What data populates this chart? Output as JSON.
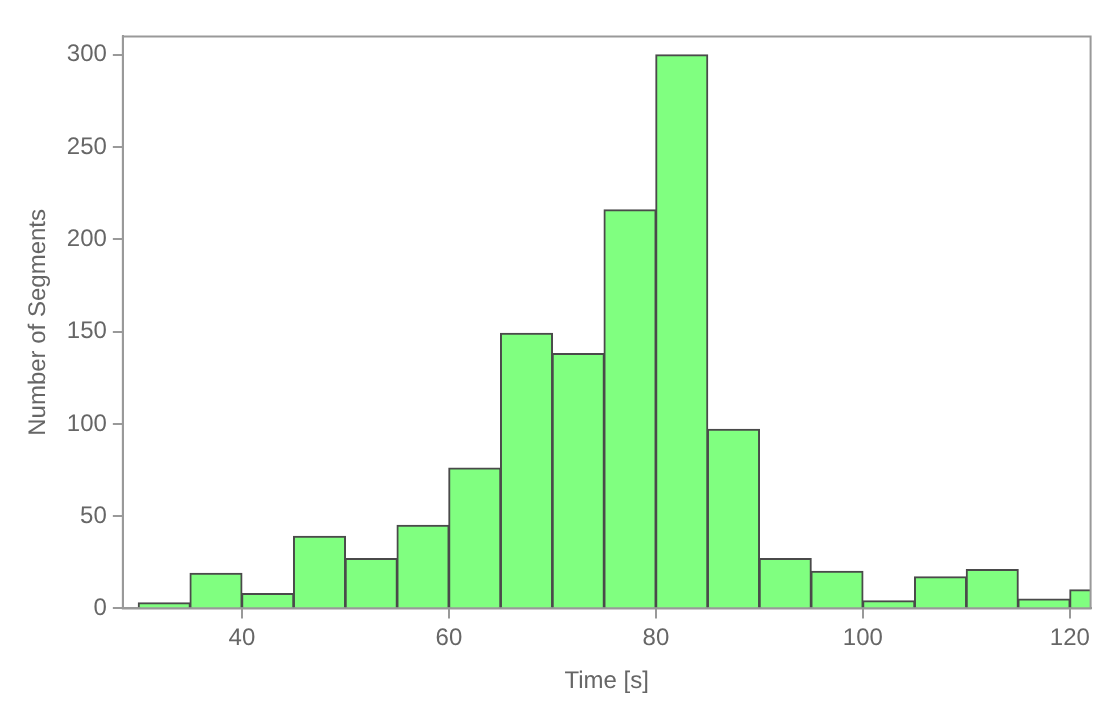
{
  "chart_data": {
    "type": "histogram",
    "xlabel": "Time [s]",
    "ylabel": "Number of Segments",
    "color": "#80ff80",
    "bins": [
      30,
      35,
      40,
      45,
      50,
      55,
      60,
      65,
      70,
      75,
      80,
      85,
      90,
      95,
      100,
      105,
      110,
      115,
      120,
      125
    ],
    "values": [
      3,
      19,
      8,
      39,
      27,
      45,
      76,
      149,
      138,
      216,
      300,
      97,
      27,
      20,
      4,
      17,
      21,
      5,
      10
    ],
    "xlim": [
      28.5,
      122
    ],
    "xticks": [
      40,
      60,
      80,
      100,
      120
    ],
    "ylim": [
      0,
      310
    ],
    "yticks": [
      0,
      50,
      100,
      150,
      200,
      250,
      300
    ],
    "grid": false,
    "legend": false
  }
}
